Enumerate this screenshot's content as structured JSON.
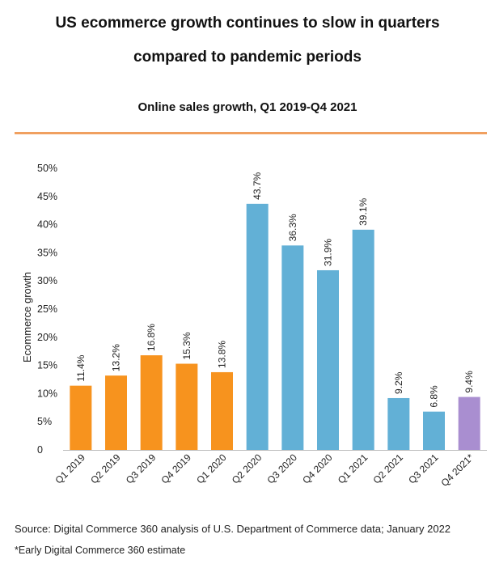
{
  "header": {
    "title_line1": "US ecommerce growth continues to slow in quarters",
    "title_line2": "compared to pandemic periods",
    "subtitle": "Online sales growth, Q1 2019-Q4 2021"
  },
  "footer": {
    "source": "Source: Digital Commerce 360 analysis of U.S. Department of Commerce data; January 2022",
    "note": "*Early Digital Commerce 360 estimate"
  },
  "colors": {
    "pre_pandemic": "#f7931e",
    "pandemic": "#62b0d6",
    "estimate": "#a98ed0",
    "rule": "#f0a060"
  },
  "chart_data": {
    "type": "bar",
    "title": "Online sales growth, Q1 2019-Q4 2021",
    "ylabel": "Ecommerce growth",
    "xlabel": "",
    "ylim": [
      0,
      50
    ],
    "yticks": [
      "0",
      "5%",
      "10%",
      "15%",
      "20%",
      "25%",
      "30%",
      "35%",
      "40%",
      "45%",
      "50%"
    ],
    "grid": false,
    "categories": [
      "Q1 2019",
      "Q2 2019",
      "Q3 2019",
      "Q4 2019",
      "Q1 2020",
      "Q2 2020",
      "Q3 2020",
      "Q4 2020",
      "Q1 2021",
      "Q2 2021",
      "Q3 2021",
      "Q4 2021*"
    ],
    "values": [
      11.4,
      13.2,
      16.8,
      15.3,
      13.8,
      43.7,
      36.3,
      31.9,
      39.1,
      9.2,
      6.8,
      9.4
    ],
    "labels": [
      "11.4%",
      "13.2%",
      "16.8%",
      "15.3%",
      "13.8%",
      "43.7%",
      "36.3%",
      "31.9%",
      "39.1%",
      "9.2%",
      "6.8%",
      "9.4%"
    ],
    "bar_colors": [
      "#f7931e",
      "#f7931e",
      "#f7931e",
      "#f7931e",
      "#f7931e",
      "#62b0d6",
      "#62b0d6",
      "#62b0d6",
      "#62b0d6",
      "#62b0d6",
      "#62b0d6",
      "#a98ed0"
    ]
  }
}
